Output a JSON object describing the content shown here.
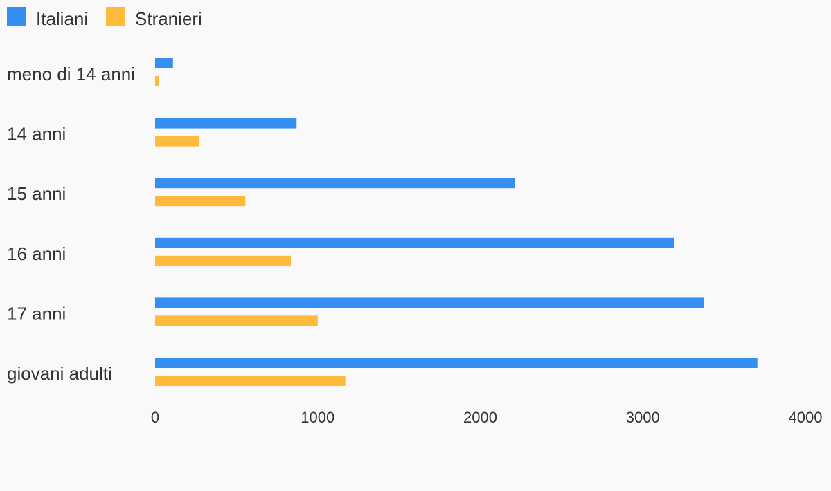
{
  "chart_data": {
    "type": "bar",
    "orientation": "horizontal",
    "categories": [
      "meno di 14 anni",
      "14 anni",
      "15 anni",
      "16 anni",
      "17 anni",
      "giovani adulti"
    ],
    "series": [
      {
        "name": "Italiani",
        "color": "#358ff0",
        "values": [
          110,
          870,
          2215,
          3195,
          3375,
          3705
        ]
      },
      {
        "name": "Stranieri",
        "color": "#ffb93b",
        "values": [
          25,
          270,
          555,
          835,
          1000,
          1170
        ]
      }
    ],
    "x_ticks": [
      "0",
      "1000",
      "2000",
      "3000",
      "4000"
    ],
    "xlim": [
      0,
      4000
    ],
    "legend_position": "top-left",
    "grid": false,
    "title": "",
    "xlabel": "",
    "ylabel": ""
  }
}
